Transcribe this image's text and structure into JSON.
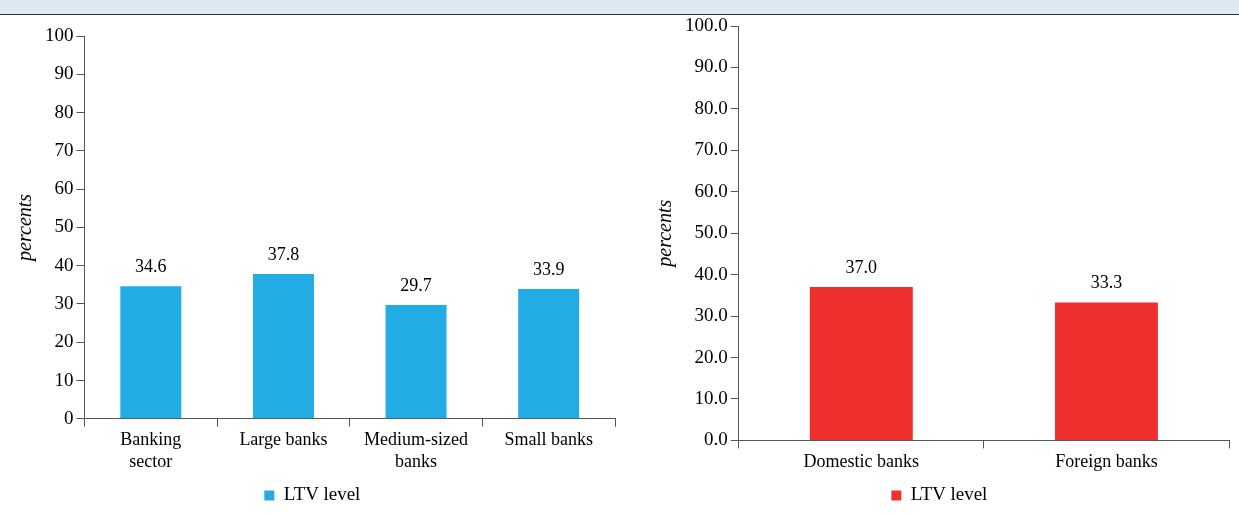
{
  "chart_data": [
    {
      "type": "bar",
      "ylabel": "percents",
      "categories": [
        "Banking sector",
        "Large banks",
        "Medium-sized banks",
        "Small banks"
      ],
      "series": [
        {
          "name": "LTV level",
          "color": "#21ade4",
          "values": [
            34.6,
            37.8,
            29.7,
            33.9
          ]
        }
      ],
      "ylim": [
        0,
        100
      ],
      "yticks": [
        0,
        10,
        20,
        30,
        40,
        50,
        60,
        70,
        80,
        90,
        100
      ],
      "grid": false,
      "legend": "bottom",
      "data_labels": true
    },
    {
      "type": "bar",
      "ylabel": "percents",
      "categories": [
        "Domestic banks",
        "Foreign banks"
      ],
      "series": [
        {
          "name": "LTV level",
          "color": "#ee312e",
          "values": [
            37.0,
            33.3
          ],
          "value_labels": [
            "37.0",
            "33.3"
          ]
        }
      ],
      "ylim": [
        0,
        100
      ],
      "yticks": [
        {
          "value": 0,
          "label": "0.0"
        },
        {
          "value": 10,
          "label": "10.0"
        },
        {
          "value": 20,
          "label": "20.0"
        },
        {
          "value": 30,
          "label": "30.0"
        },
        {
          "value": 40,
          "label": "40.0"
        },
        {
          "value": 50,
          "label": "50.0"
        },
        {
          "value": 60,
          "label": "60.0"
        },
        {
          "value": 70,
          "label": "70.0"
        },
        {
          "value": 80,
          "label": "80.0"
        },
        {
          "value": 90,
          "label": "90.0"
        },
        {
          "value": 100,
          "label": "100.0"
        }
      ],
      "grid": false,
      "legend": "bottom"
    }
  ]
}
